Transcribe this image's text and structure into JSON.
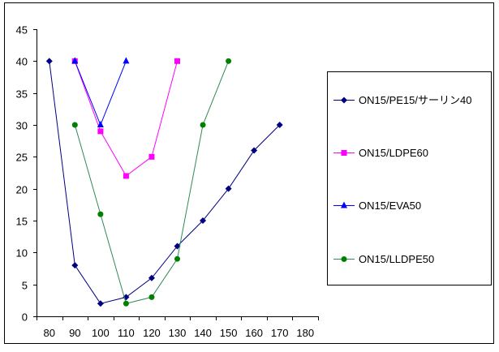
{
  "chart_data": {
    "type": "line",
    "title": "",
    "xlabel": "",
    "ylabel": "",
    "categories": [
      80,
      90,
      100,
      110,
      120,
      130,
      140,
      150,
      160,
      170,
      180
    ],
    "ylim": [
      0,
      45
    ],
    "yticks": [
      0,
      5,
      10,
      15,
      20,
      25,
      30,
      35,
      40,
      45
    ],
    "grid": false,
    "legend_position": "right",
    "series": [
      {
        "name": "ON15/PE15/サーリン40",
        "color": "#000080",
        "marker": "diamond",
        "points": [
          [
            80,
            40
          ],
          [
            90,
            8
          ],
          [
            100,
            2
          ],
          [
            110,
            3
          ],
          [
            120,
            6
          ],
          [
            130,
            11
          ],
          [
            140,
            15
          ],
          [
            150,
            20
          ],
          [
            160,
            26
          ],
          [
            170,
            30
          ]
        ]
      },
      {
        "name": "ON15/LDPE60",
        "color": "#FF00FF",
        "marker": "square",
        "points": [
          [
            90,
            40
          ],
          [
            100,
            29
          ],
          [
            110,
            22
          ],
          [
            120,
            25
          ],
          [
            130,
            40
          ]
        ]
      },
      {
        "name": "ON15/EVA50",
        "color": "#0000FF",
        "marker": "triangle",
        "points": [
          [
            90,
            40
          ],
          [
            100,
            30
          ],
          [
            110,
            40
          ]
        ]
      },
      {
        "name": "ON15/LLDPE50",
        "color": "#008000",
        "line_color": "#2E8B57",
        "marker": "circle",
        "points": [
          [
            90,
            30
          ],
          [
            100,
            16
          ],
          [
            110,
            2
          ],
          [
            120,
            3
          ],
          [
            130,
            9
          ],
          [
            140,
            30
          ],
          [
            150,
            40
          ]
        ]
      }
    ]
  }
}
